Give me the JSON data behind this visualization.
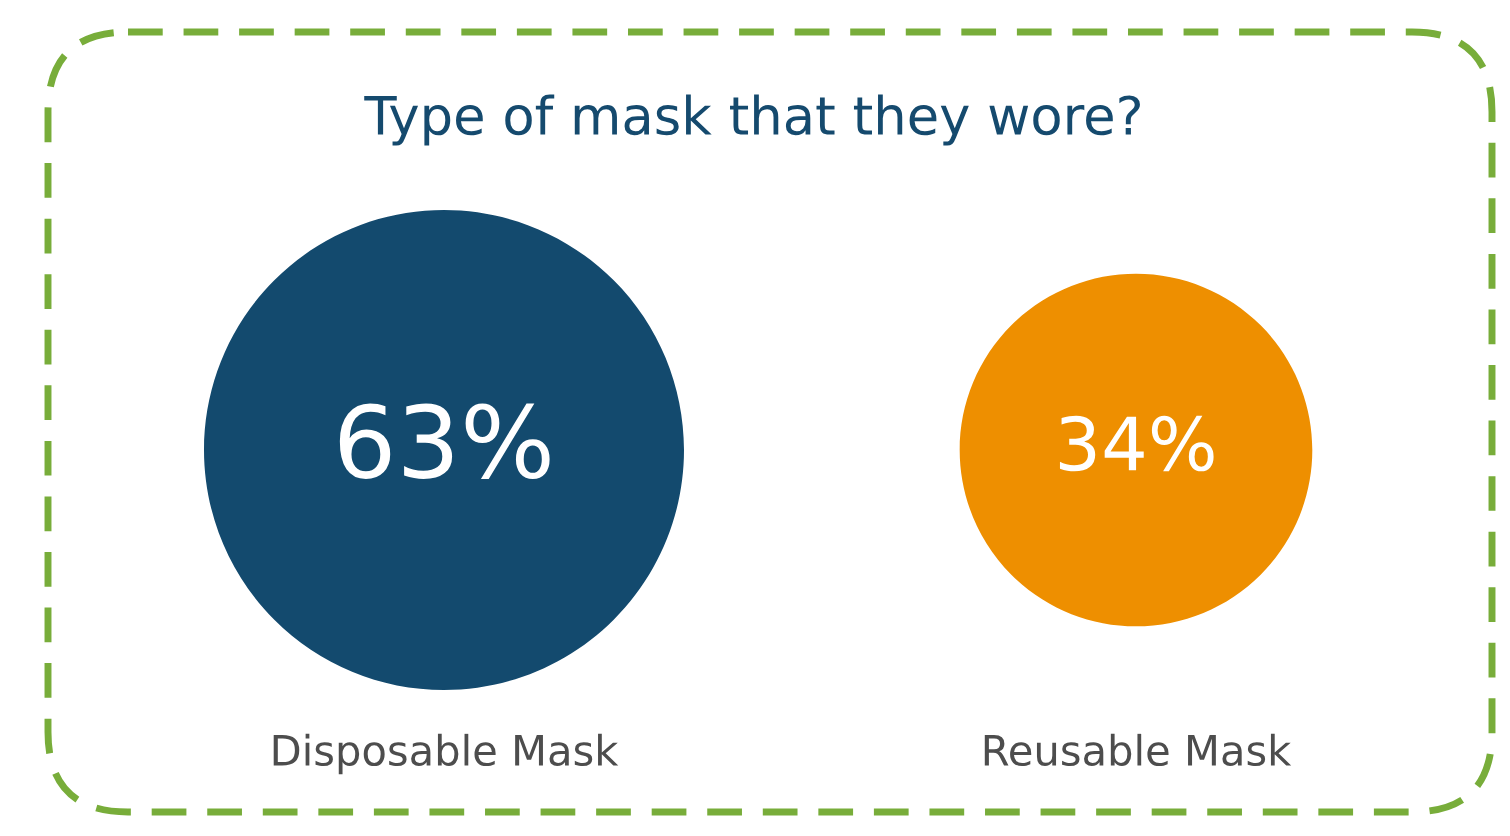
{
  "chart_data": {
    "type": "other",
    "title": "Type of mask that they wore?",
    "categories": [
      "Disposable Mask",
      "Reusable Mask"
    ],
    "values": [
      63,
      34
    ],
    "value_labels": [
      "63%",
      "34%"
    ],
    "colors": [
      "#134a6e",
      "#ee8f00"
    ]
  }
}
